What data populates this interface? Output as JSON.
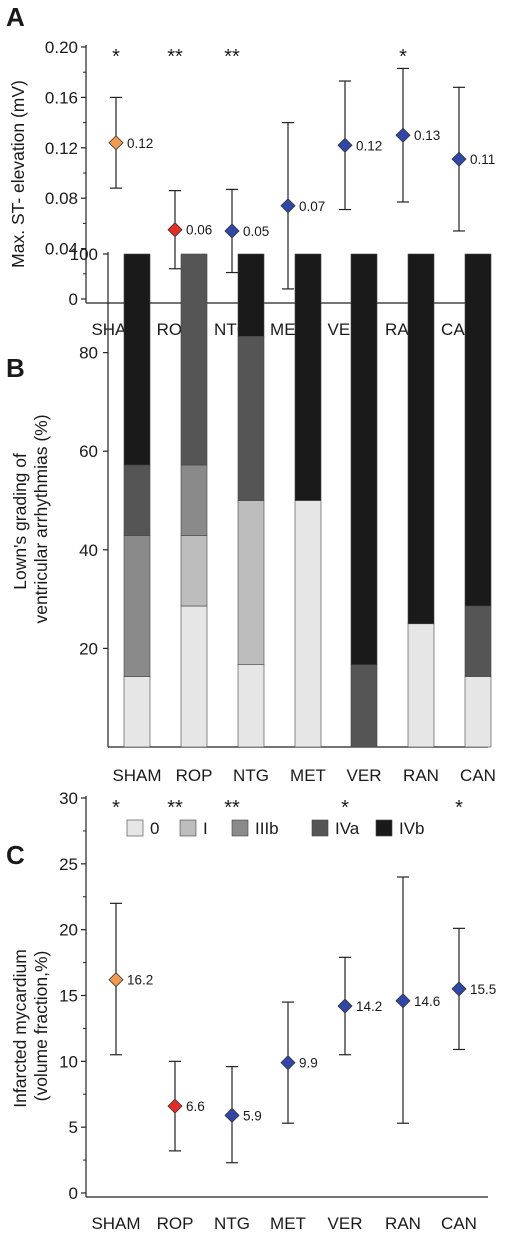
{
  "colors": {
    "orange": "#f39a52",
    "red": "#e32d26",
    "blue": "#3047a6",
    "levels": [
      "#e6e6e6",
      "#bdbdbd",
      "#8a8a8a",
      "#555555",
      "#1a1a1a"
    ]
  },
  "chart_data": [
    {
      "panel": "A",
      "type": "scatter",
      "ylabel": "Max. ST- elevation (mV)",
      "ylim": [
        0,
        0.2
      ],
      "yticks": [
        "0",
        "0.04",
        "0.08",
        "0.12",
        "0.16",
        "0.20"
      ],
      "ytick_values": [
        0,
        0.04,
        0.08,
        0.12,
        0.16,
        0.2
      ],
      "categories": [
        "SHAM",
        "ROP",
        "NTG",
        "MET",
        "VER",
        "RAN",
        "CAN"
      ],
      "values": [
        0.124,
        0.055,
        0.054,
        0.074,
        0.122,
        0.13,
        0.111
      ],
      "value_labels": [
        "0.12",
        "0.06",
        "0.05",
        "0.07",
        "0.12",
        "0.13",
        "0.11"
      ],
      "err_low": [
        0.088,
        0.024,
        0.021,
        0.008,
        0.071,
        0.077,
        0.054
      ],
      "err_high": [
        0.16,
        0.086,
        0.087,
        0.14,
        0.173,
        0.183,
        0.168
      ],
      "marker_colors": [
        "orange",
        "red",
        "blue",
        "blue",
        "blue",
        "blue",
        "blue"
      ],
      "significance": [
        "*",
        "**",
        "**",
        "",
        "",
        "*",
        ""
      ]
    },
    {
      "panel": "B",
      "type": "bar",
      "stacked": true,
      "ylabel": "Lown's grading of\nventricular arrhythmias (%)",
      "ylim": [
        0,
        100
      ],
      "yticks": [
        "20",
        "40",
        "60",
        "80",
        "100"
      ],
      "ytick_values": [
        20,
        40,
        60,
        80,
        100
      ],
      "categories": [
        "SHAM",
        "ROP",
        "NTG",
        "MET",
        "VER",
        "RAN",
        "CAN"
      ],
      "series": [
        {
          "name": "0",
          "values": [
            14.3,
            28.6,
            16.7,
            50,
            0,
            25,
            14.3
          ]
        },
        {
          "name": "I",
          "values": [
            0,
            14.3,
            33.3,
            0,
            0,
            0,
            0
          ]
        },
        {
          "name": "IIIb",
          "values": [
            28.6,
            14.3,
            0,
            0,
            0,
            0,
            0
          ]
        },
        {
          "name": "IVa",
          "values": [
            14.3,
            42.8,
            33.3,
            0,
            16.7,
            0,
            14.3
          ]
        },
        {
          "name": "IVb",
          "values": [
            42.8,
            0,
            16.7,
            50,
            83.3,
            75,
            71.4
          ]
        }
      ],
      "legend_position": "bottom"
    },
    {
      "panel": "C",
      "type": "scatter",
      "ylabel": "Infarcted mycardium\n(volume fraction,%)",
      "ylim": [
        0,
        30
      ],
      "yticks": [
        "0",
        "5",
        "10",
        "15",
        "20",
        "25",
        "30"
      ],
      "ytick_values": [
        0,
        5,
        10,
        15,
        20,
        25,
        30
      ],
      "categories": [
        "SHAM",
        "ROP",
        "NTG",
        "MET",
        "VER",
        "RAN",
        "CAN"
      ],
      "values": [
        16.2,
        6.6,
        5.9,
        9.9,
        14.2,
        14.6,
        15.5
      ],
      "value_labels": [
        "16.2",
        "6.6",
        "5.9",
        "9.9",
        "14.2",
        "14.6",
        "15.5"
      ],
      "err_low": [
        10.5,
        3.2,
        2.3,
        5.3,
        10.5,
        5.3,
        10.9
      ],
      "err_high": [
        22.0,
        10.0,
        9.6,
        14.5,
        17.9,
        24.0,
        20.1
      ],
      "marker_colors": [
        "orange",
        "red",
        "blue",
        "blue",
        "blue",
        "blue",
        "blue"
      ],
      "significance": [
        "*",
        "**",
        "**",
        "",
        "*",
        "",
        "*"
      ]
    }
  ]
}
